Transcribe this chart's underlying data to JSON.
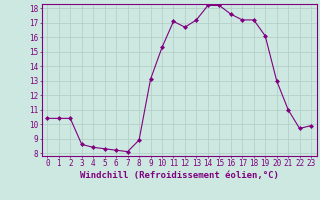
{
  "x": [
    0,
    1,
    2,
    3,
    4,
    5,
    6,
    7,
    8,
    9,
    10,
    11,
    12,
    13,
    14,
    15,
    16,
    17,
    18,
    19,
    20,
    21,
    22,
    23
  ],
  "y": [
    10.4,
    10.4,
    10.4,
    8.6,
    8.4,
    8.3,
    8.2,
    8.1,
    8.9,
    13.1,
    15.3,
    17.1,
    16.7,
    17.2,
    18.2,
    18.2,
    17.6,
    17.2,
    17.2,
    16.1,
    13.0,
    11.0,
    9.7,
    9.9
  ],
  "line_color": "#800080",
  "marker": "D",
  "marker_size": 2,
  "bg_color": "#cce8e0",
  "grid_color": "#b0ccc4",
  "xlabel": "Windchill (Refroidissement éolien,°C)",
  "ylim": [
    8,
    18
  ],
  "xlim": [
    -0.5,
    23.5
  ],
  "yticks": [
    8,
    9,
    10,
    11,
    12,
    13,
    14,
    15,
    16,
    17,
    18
  ],
  "xticks": [
    0,
    1,
    2,
    3,
    4,
    5,
    6,
    7,
    8,
    9,
    10,
    11,
    12,
    13,
    14,
    15,
    16,
    17,
    18,
    19,
    20,
    21,
    22,
    23
  ],
  "xlabel_color": "#800080",
  "tick_color": "#800080",
  "spine_color": "#800080",
  "label_fontsize": 6.5,
  "tick_fontsize": 5.5
}
